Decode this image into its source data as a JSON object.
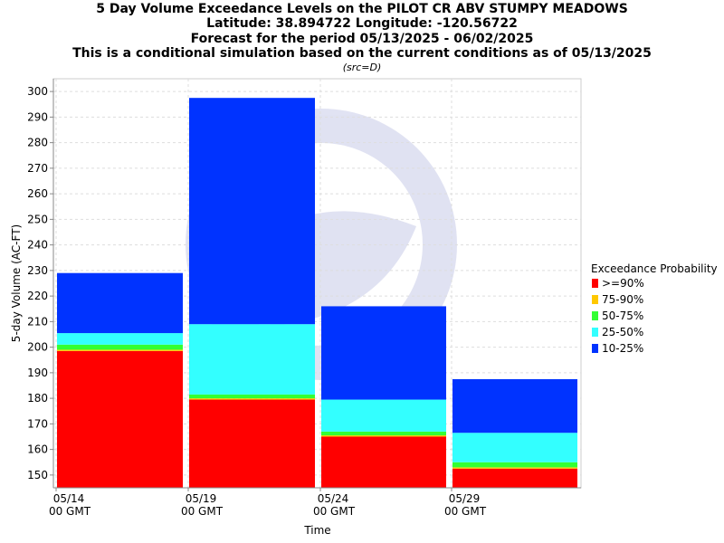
{
  "chart_data": {
    "type": "bar",
    "title_lines": [
      "5 Day Volume Exceedance Levels on the PILOT CR ABV STUMPY MEADOWS",
      "Latitude: 38.894722 Longitude: -120.56722",
      "Forecast for the period 05/13/2025 - 06/02/2025",
      "This is a conditional simulation based on the current conditions as of 05/13/2025"
    ],
    "subtitle": "(src=D)",
    "xlabel": "Time",
    "ylabel": "5-day Volume (AC-FT)",
    "ylim": [
      145,
      305
    ],
    "yticks": [
      150,
      160,
      170,
      180,
      190,
      200,
      210,
      220,
      230,
      240,
      250,
      260,
      270,
      280,
      290,
      300
    ],
    "xticks": [
      {
        "line1": "05/14",
        "line2": "00 GMT"
      },
      {
        "line1": "05/19",
        "line2": "00 GMT"
      },
      {
        "line1": "05/24",
        "line2": "00 GMT"
      },
      {
        "line1": "05/29",
        "line2": "00 GMT"
      }
    ],
    "grid": true,
    "legend_title": "Exceedance Probability",
    "legend_position": "right",
    "series": [
      {
        "name": ">=90%",
        "color": "#ff0000"
      },
      {
        "name": "75-90%",
        "color": "#ffc800"
      },
      {
        "name": "50-75%",
        "color": "#33ff33"
      },
      {
        "name": "25-50%",
        "color": "#33ffff"
      },
      {
        "name": "10-25%",
        "color": "#0033ff"
      }
    ],
    "bars": [
      {
        "period": "05/14 - 05/19",
        "levels": [
          198.5,
          199.0,
          201.0,
          205.5,
          229.0
        ]
      },
      {
        "period": "05/19 - 05/24",
        "levels": [
          179.5,
          180.0,
          181.5,
          209.0,
          297.5
        ]
      },
      {
        "period": "05/24 - 05/29",
        "levels": [
          165.0,
          165.5,
          167.0,
          179.5,
          216.0
        ]
      },
      {
        "period": "05/29 - 06/03",
        "levels": [
          152.5,
          153.0,
          155.0,
          166.5,
          187.5
        ]
      }
    ]
  }
}
